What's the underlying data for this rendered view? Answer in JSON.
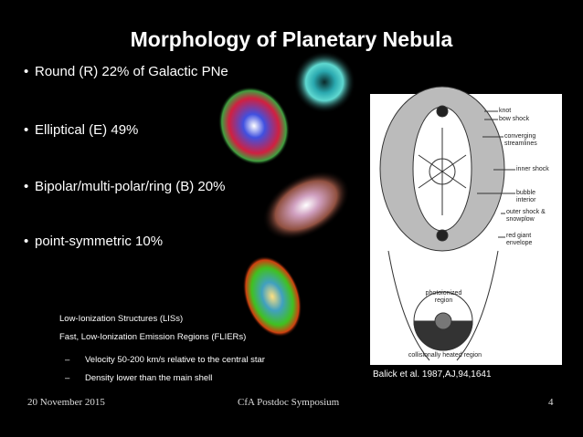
{
  "slide": {
    "title": "Morphology of Planetary Nebula",
    "bullets": [
      "Round (R) 22% of Galactic PNe",
      "Elliptical (E) 49%",
      "Bipolar/multi-polar/ring (B) 20%",
      "point-symmetric 10%"
    ],
    "sub_items": [
      "Low-Ionization Structures (LISs)",
      "Fast, Low-Ionization Emission Regions (FLIERs)"
    ],
    "sub_sub_items": [
      "Velocity 50-200 km/s relative to the central star",
      "Density lower than the main shell"
    ],
    "figure": {
      "labels": [
        "knot",
        "bow shock",
        "converging streamlines",
        "inner shock",
        "bubble interior",
        "outer shock & snowplow",
        "red giant envelope",
        "photoionized region",
        "collisionally heated region"
      ],
      "caption": "Balick et al. 1987,AJ,94,1641"
    },
    "footer": {
      "date": "20 November 2015",
      "event": "CfA Postdoc Symposium",
      "page": "4"
    }
  }
}
